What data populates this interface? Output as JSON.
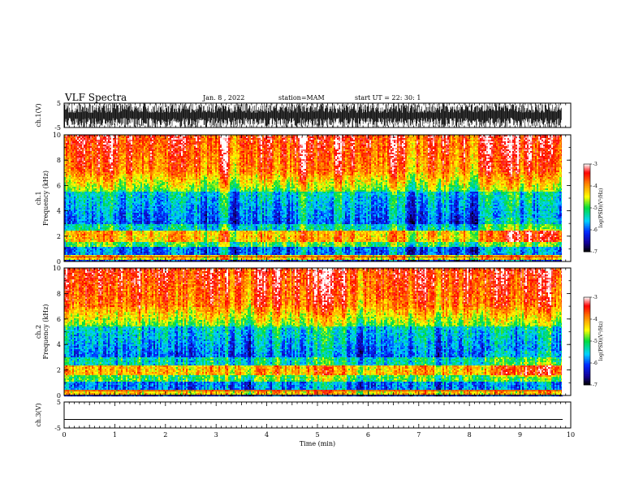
{
  "header": {
    "title": "VLF Spectra",
    "date": "Jan. 8 , 2022",
    "station": "station=MAM",
    "start_ut": "start UT =  22: 30: 1"
  },
  "chart_data": [
    {
      "type": "line",
      "panel": "waveform-ch1",
      "ylabel": "ch.1(V)",
      "ylim": [
        -5,
        5
      ],
      "yticks": [
        "5",
        "-5"
      ],
      "xlim": [
        0,
        10
      ],
      "x_extent": 9.82,
      "description": "dense burst waveform"
    },
    {
      "type": "heatmap",
      "panel": "spectrogram-ch1",
      "ylabel_line1": "ch.1",
      "ylabel_line2": "Frequency (kHz)",
      "ylim": [
        0,
        10
      ],
      "yticks": [
        "0",
        "2",
        "4",
        "6",
        "8",
        "10"
      ],
      "xlim": [
        0,
        10
      ],
      "x_extent": 9.82,
      "colorbar": {
        "label": "log(PSD)(V²/Hz)",
        "ticks": [
          "-3",
          "-4",
          "-5",
          "-6",
          "-7"
        ],
        "range": [
          -7,
          -3
        ]
      },
      "bands_khz": [
        {
          "range": [
            0.2,
            0.5
          ],
          "level": -4.2
        },
        {
          "range": [
            1.7,
            2.3
          ],
          "level": -4.0
        },
        {
          "range": [
            2.5,
            5.5
          ],
          "level": -6.0
        },
        {
          "range": [
            6.0,
            10.0
          ],
          "level": -3.6
        }
      ],
      "notes": "intensification near 2 kHz after 8.3 min"
    },
    {
      "type": "heatmap",
      "panel": "spectrogram-ch2",
      "ylabel_line1": "ch.2",
      "ylabel_line2": "Frequency (kHz)",
      "ylim": [
        0,
        10
      ],
      "yticks": [
        "0",
        "2",
        "4",
        "6",
        "8",
        "10"
      ],
      "xlim": [
        0,
        10
      ],
      "x_extent": 9.82,
      "colorbar": {
        "label": "log(PSD)(V²/Hz)",
        "ticks": [
          "-3",
          "-4",
          "-5",
          "-6",
          "-7"
        ],
        "range": [
          -7,
          -3
        ]
      },
      "bands_khz": [
        {
          "range": [
            0.2,
            0.5
          ],
          "level": -4.2
        },
        {
          "range": [
            1.7,
            2.3
          ],
          "level": -4.0
        },
        {
          "range": [
            2.5,
            5.5
          ],
          "level": -6.0
        },
        {
          "range": [
            6.0,
            10.0
          ],
          "level": -3.6
        }
      ]
    },
    {
      "type": "line",
      "panel": "waveform-ch3",
      "ylabel": "ch.3(V)",
      "ylim": [
        -5,
        5
      ],
      "yticks": [
        "5",
        "-5"
      ],
      "xlim": [
        0,
        10
      ],
      "values": [
        -1.7
      ],
      "description": "flat line near -1.7 V"
    }
  ],
  "xaxis": {
    "label": "Time (min)",
    "ticks": [
      "0",
      "1",
      "2",
      "3",
      "4",
      "5",
      "6",
      "7",
      "8",
      "9",
      "10"
    ]
  }
}
